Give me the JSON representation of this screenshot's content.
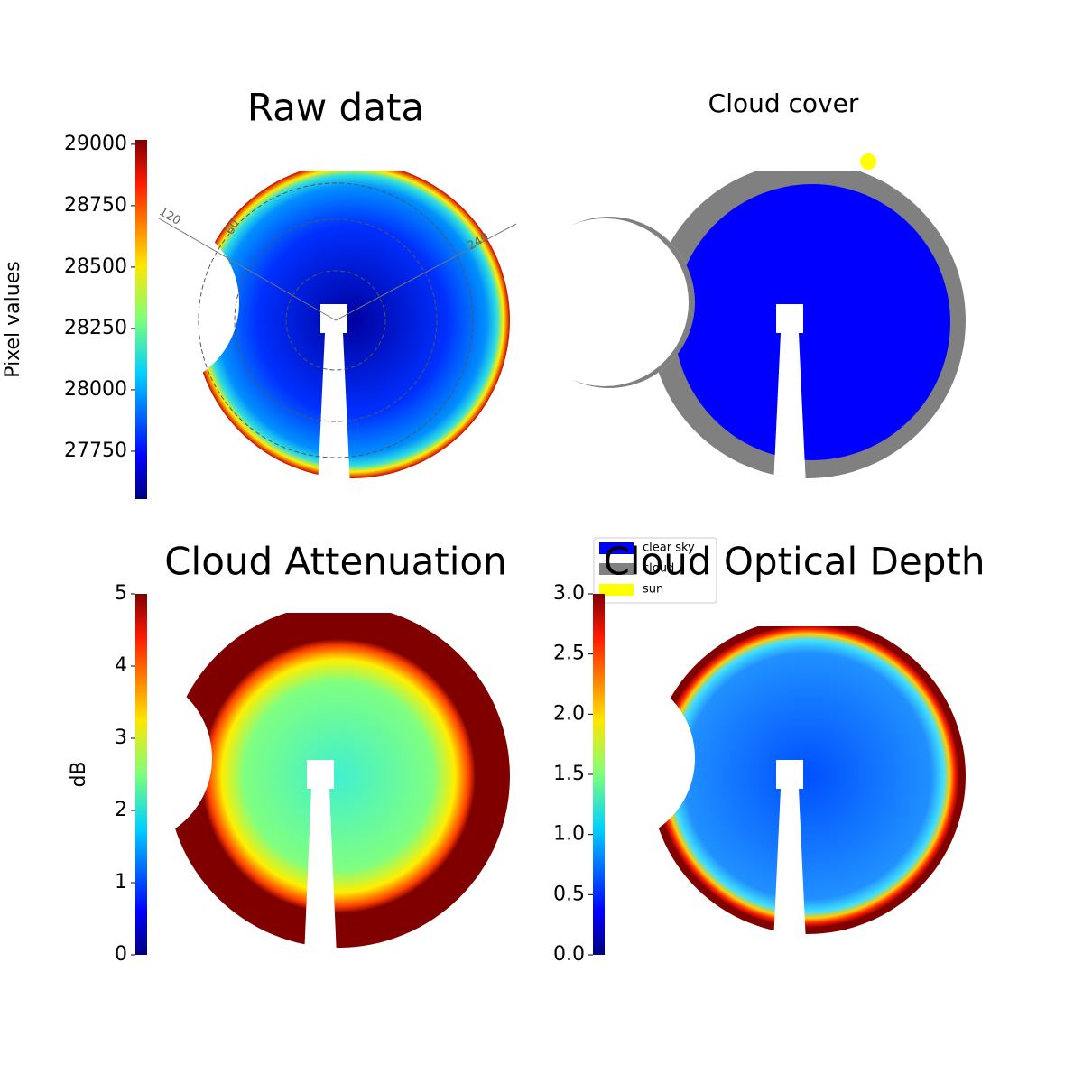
{
  "chart_data": [
    {
      "type": "image",
      "title": "Raw data",
      "colorbar_label": "Pixel values",
      "clim": [
        27555,
        29018
      ],
      "cticks": [
        27750,
        28000,
        28250,
        28500,
        28750,
        29000
      ],
      "annotations": [
        "120",
        "60",
        "240"
      ]
    },
    {
      "type": "classes",
      "title": "Cloud cover",
      "classes": [
        {
          "name": "clear sky",
          "color": "#0000ff"
        },
        {
          "name": "cloud",
          "color": "#808080"
        },
        {
          "name": "sun",
          "color": "#ffff00"
        }
      ]
    },
    {
      "type": "image",
      "title": "Cloud Attenuation",
      "colorbar_label": "dB",
      "clim": [
        0,
        5
      ],
      "cticks": [
        0,
        1,
        2,
        3,
        4,
        5
      ]
    },
    {
      "type": "image",
      "title": "Cloud Optical Depth",
      "clim": [
        0,
        3
      ],
      "cticks": [
        {
          "value": 0,
          "label": "0.0"
        },
        {
          "value": 0.5,
          "label": "0.5"
        },
        {
          "value": 1,
          "label": "1.0"
        },
        {
          "value": 1.5,
          "label": "1.5"
        },
        {
          "value": 2,
          "label": "2.0"
        },
        {
          "value": 2.5,
          "label": "2.5"
        },
        {
          "value": 3,
          "label": "3.0"
        }
      ]
    }
  ]
}
